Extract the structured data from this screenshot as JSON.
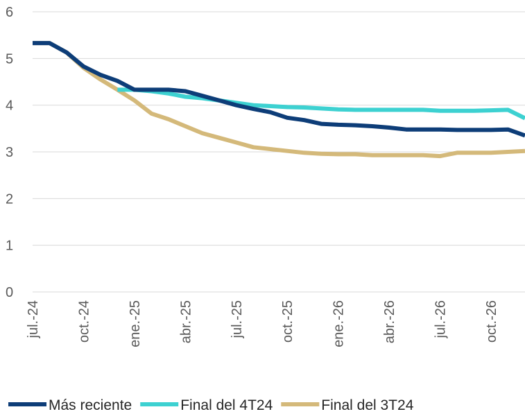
{
  "chart_data": {
    "type": "line",
    "categories": [
      "jul.-24",
      null,
      null,
      "oct.-24",
      null,
      null,
      "ene.-25",
      null,
      null,
      "abr.-25",
      null,
      null,
      "jul.-25",
      null,
      null,
      "oct.-25",
      null,
      null,
      "ene.-26",
      null,
      null,
      "abr.-26",
      null,
      null,
      "jul.-26",
      null,
      null,
      "oct.-26",
      null,
      null
    ],
    "series": [
      {
        "name": "Más reciente",
        "color": "#0d3d78",
        "values": [
          5.33,
          5.33,
          5.13,
          4.83,
          4.65,
          4.52,
          4.33,
          4.33,
          4.33,
          4.3,
          4.2,
          4.1,
          4.0,
          3.92,
          3.85,
          3.73,
          3.68,
          3.6,
          3.58,
          3.57,
          3.55,
          3.52,
          3.48,
          3.48,
          3.48,
          3.47,
          3.47,
          3.47,
          3.48,
          3.35
        ]
      },
      {
        "name": "Final del 4T24",
        "color": "#3dd1d1",
        "values": [
          null,
          null,
          null,
          null,
          null,
          4.33,
          4.33,
          4.3,
          4.25,
          4.18,
          4.15,
          4.1,
          4.05,
          4.0,
          3.98,
          3.96,
          3.95,
          3.93,
          3.91,
          3.9,
          3.9,
          3.9,
          3.9,
          3.9,
          3.88,
          3.88,
          3.88,
          3.89,
          3.9,
          3.72
        ]
      },
      {
        "name": "Final del 3T24",
        "color": "#d4b97a",
        "values": [
          5.33,
          5.33,
          5.13,
          4.8,
          4.55,
          4.33,
          4.1,
          3.82,
          3.7,
          3.55,
          3.4,
          3.3,
          3.2,
          3.1,
          3.06,
          3.02,
          2.98,
          2.96,
          2.95,
          2.95,
          2.93,
          2.93,
          2.93,
          2.93,
          2.91,
          2.98,
          2.98,
          2.98,
          3.0,
          3.02
        ]
      }
    ],
    "ylim": [
      0,
      6
    ],
    "yticks": [
      0,
      1,
      2,
      3,
      4,
      5,
      6
    ],
    "grid": true,
    "legend": "bottom"
  }
}
